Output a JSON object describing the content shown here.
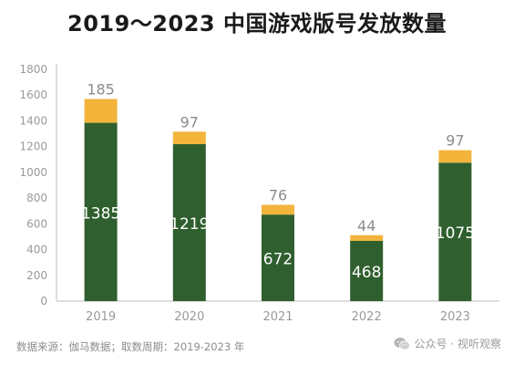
{
  "chart_data": {
    "type": "bar",
    "stacked": true,
    "title": "2019～2023 中国游戏版号发放数量",
    "categories": [
      "2019",
      "2020",
      "2021",
      "2022",
      "2023"
    ],
    "series": [
      {
        "values": [
          1385,
          1219,
          672,
          468,
          1075
        ],
        "color": "#2f5f2e"
      },
      {
        "values": [
          185,
          97,
          76,
          44,
          97
        ],
        "color": "#f3b43c"
      }
    ],
    "ylim": [
      0,
      1800
    ],
    "yticks": [
      0,
      200,
      400,
      600,
      800,
      1000,
      1200,
      1400,
      1600,
      1800
    ],
    "grid": false,
    "legend": "none",
    "colors": {
      "inner_label": "#ffffff",
      "top_label": "#8c8c8c",
      "axis": "#bdbdbd",
      "tick_text": "#9a9a9a"
    }
  },
  "footer": {
    "source": "数据来源：伽马数据；取数周期：2019-2023 年",
    "watermark": "公众号 · 视听观察",
    "watermark_icon": "wechat-icon"
  }
}
